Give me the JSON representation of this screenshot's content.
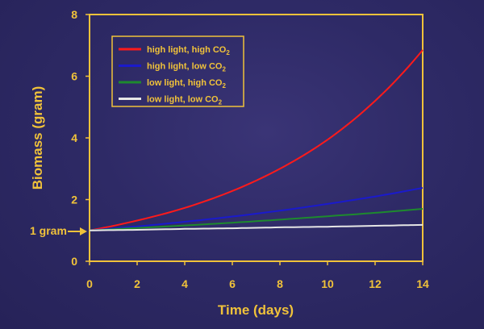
{
  "chart_data": {
    "type": "line",
    "title": "",
    "xlabel": "Time (days)",
    "ylabel": "Biomass (gram)",
    "xlim": [
      0,
      14
    ],
    "ylim": [
      0,
      8
    ],
    "xticks": [
      "0",
      "2",
      "4",
      "6",
      "8",
      "10",
      "12",
      "14"
    ],
    "yticks": [
      "0",
      "2",
      "4",
      "6",
      "8"
    ],
    "grid": false,
    "legend_position": "top-left",
    "annotation": "1 gram",
    "annotation_value": 1,
    "axis_color": "#f0c23a",
    "x": [
      0,
      2,
      4,
      6,
      8,
      10,
      12,
      14
    ],
    "series": [
      {
        "name": "high light, high CO₂",
        "label_main": "high light, high CO",
        "label_sub": "2",
        "color": "#ff1a1a",
        "values": [
          1.0,
          1.32,
          1.73,
          2.28,
          3.0,
          3.94,
          5.2,
          6.85
        ]
      },
      {
        "name": "high light, low CO₂",
        "label_main": "high light, low CO",
        "label_sub": "2",
        "color": "#1a1acc",
        "values": [
          1.0,
          1.13,
          1.28,
          1.45,
          1.64,
          1.86,
          2.1,
          2.38
        ]
      },
      {
        "name": "low light, high CO₂",
        "label_main": "low light, high CO",
        "label_sub": "2",
        "color": "#1e8a2e",
        "values": [
          1.0,
          1.08,
          1.16,
          1.25,
          1.35,
          1.46,
          1.57,
          1.7
        ]
      },
      {
        "name": "low light, low CO₂",
        "label_main": "low light, low CO",
        "label_sub": "2",
        "color": "#e6e6e6",
        "values": [
          1.0,
          1.02,
          1.05,
          1.07,
          1.1,
          1.12,
          1.15,
          1.18
        ]
      }
    ]
  }
}
